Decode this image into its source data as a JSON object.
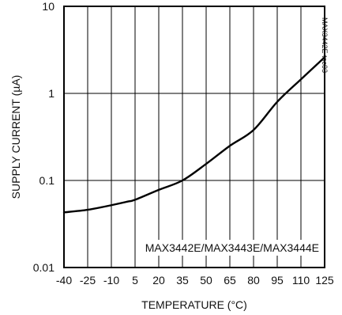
{
  "chart_data": {
    "type": "line",
    "title": "",
    "xlabel": "TEMPERATURE (°C)",
    "ylabel": "SUPPLY CURRENT (µA)",
    "x_scale": "linear",
    "y_scale": "log",
    "xlim": [
      -40,
      125
    ],
    "ylim": [
      0.01,
      10
    ],
    "x_ticks": [
      "-40",
      "-25",
      "-10",
      "5",
      "20",
      "35",
      "50",
      "65",
      "80",
      "95",
      "110",
      "125"
    ],
    "y_ticks": [
      "10",
      "1",
      "0.1",
      "0.01"
    ],
    "grid": true,
    "legend_text": "MAX3442E/MAX3443E/MAX3444E",
    "figure_id": "MAX3442E toc03",
    "series": [
      {
        "x": [
          -40,
          -25,
          -10,
          0,
          5,
          20,
          35,
          50,
          65,
          80,
          95,
          110,
          125
        ],
        "y": [
          0.043,
          0.046,
          0.052,
          0.057,
          0.06,
          0.078,
          0.1,
          0.155,
          0.25,
          0.38,
          0.8,
          1.45,
          2.6
        ],
        "color": "#000000"
      }
    ]
  }
}
